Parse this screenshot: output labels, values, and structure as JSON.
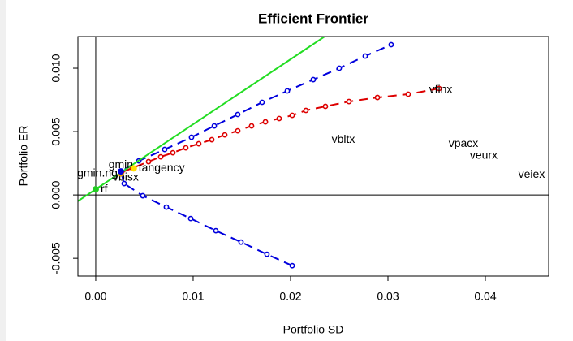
{
  "chart_data": {
    "type": "scatter",
    "title": "Efficient Frontier",
    "x_label": "Portfolio SD",
    "y_label": "Portfolio ER",
    "xlim": [
      -0.00183,
      0.0465
    ],
    "ylim": [
      -0.0064,
      0.0125
    ],
    "xticks": [
      {
        "value": 0,
        "label": "0.00"
      },
      0.01,
      0.02,
      0.03,
      0.04
    ],
    "yticks": [
      -0.005,
      {
        "value": 0,
        "label": "0.000"
      },
      0.005,
      {
        "value": 0.01,
        "label": "0.010"
      }
    ],
    "hlines": [
      0
    ],
    "vlines": [
      0
    ],
    "series": [
      {
        "color": "#0000dd",
        "line": "dashed",
        "marker": "circle",
        "x": [
          0.02017,
          0.01758,
          0.01492,
          0.01233,
          0.00975,
          0.00725,
          0.00483,
          0.00292,
          0.00258,
          0.00442,
          0.00708,
          0.00983,
          0.01217,
          0.01458,
          0.01708,
          0.01967,
          0.02233,
          0.025,
          0.02767,
          0.03033
        ],
        "values": [
          -0.00558,
          -0.00468,
          -0.00372,
          -0.00282,
          -0.00186,
          -0.00096,
          -6e-05,
          0.0009,
          0.00186,
          0.00269,
          0.00359,
          0.00455,
          0.00545,
          0.00635,
          0.00731,
          0.00821,
          0.0091,
          0.01,
          0.01096,
          0.01186
        ]
      },
      {
        "color": "#dd0000",
        "line": "dashed",
        "marker": "circle",
        "x": [
          0.00267,
          0.00375,
          0.00542,
          0.00667,
          0.00792,
          0.00925,
          0.01058,
          0.01192,
          0.01325,
          0.01458,
          0.016,
          0.01742,
          0.01883,
          0.02017,
          0.02158,
          0.02358,
          0.026,
          0.02892,
          0.03208,
          0.03525
        ],
        "values": [
          0.00179,
          0.00212,
          0.00263,
          0.00301,
          0.00333,
          0.00372,
          0.00404,
          0.00436,
          0.00474,
          0.00506,
          0.00545,
          0.00577,
          0.00603,
          0.00628,
          0.00667,
          0.00699,
          0.00737,
          0.00769,
          0.00795,
          0.0084
        ]
      },
      {
        "color": "#22dd22",
        "line": "solid",
        "extend": true,
        "x": [
          0,
          0.0235
        ],
        "values": [
          0.00045,
          0.0125
        ]
      }
    ],
    "points": {
      "labels": [
        "vfinx",
        "vbltx",
        "vpacx",
        "veurx",
        "veiex",
        "vbisx",
        "gmin.ng",
        "gmin",
        "tangency",
        "rf"
      ],
      "x": [
        0.03542,
        0.02542,
        0.03775,
        0.03983,
        0.04475,
        0.00308,
        0.00258,
        0.00258,
        0.0039,
        0
      ],
      "values": [
        0.00827,
        0.00436,
        0.00404,
        0.00308,
        0.0016,
        0.00135,
        0.0017,
        0.00186,
        0.0021,
        0.00045
      ],
      "colors": [
        null,
        null,
        null,
        null,
        null,
        null,
        "#e8a000",
        "#0000dd",
        "#ffdd00",
        "#22cc22"
      ],
      "pos": [
        0,
        0,
        0,
        0,
        0,
        0,
        2,
        3,
        4,
        4
      ]
    }
  }
}
